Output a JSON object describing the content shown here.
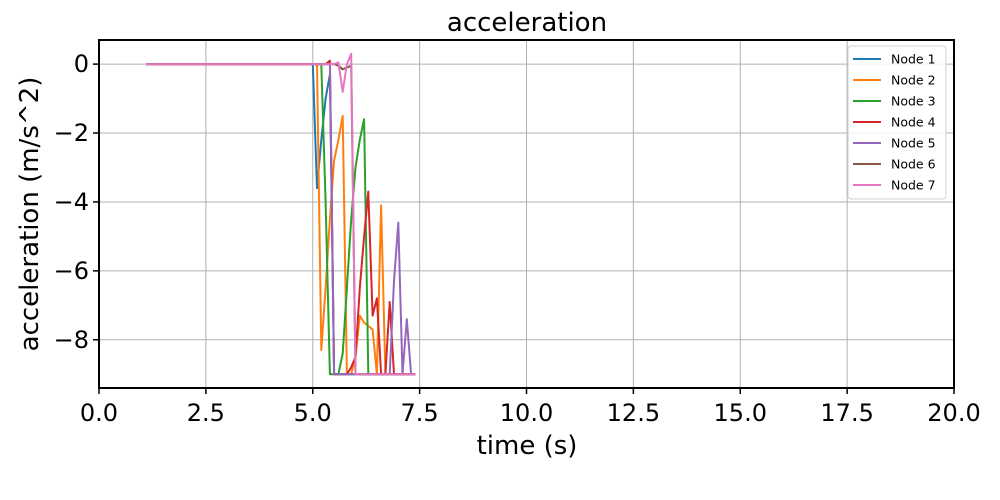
{
  "chart_data": {
    "type": "line",
    "title": "acceleration",
    "xlabel": "time (s)",
    "ylabel": "acceleration (m/s^2)",
    "xlim": [
      0,
      20
    ],
    "ylim": [
      -9.4,
      0.7
    ],
    "grid": true,
    "legend_position": "top-right",
    "x_ticks": [
      0,
      2.5,
      5,
      7.5,
      10,
      12.5,
      15,
      17.5,
      20
    ],
    "x_tick_labels": [
      "0.0",
      "2.5",
      "5.0",
      "7.5",
      "10.0",
      "12.5",
      "15.0",
      "17.5",
      "20.0"
    ],
    "y_ticks": [
      0,
      -2,
      -4,
      -6,
      -8
    ],
    "y_tick_labels": [
      "0",
      "−2",
      "−4",
      "−6",
      "−8"
    ],
    "series": [
      {
        "name": "Node 1",
        "color": "#1f77b4",
        "x": [
          1.1,
          5.0,
          5.1,
          5.2,
          5.3,
          5.4,
          5.5,
          5.6,
          5.7,
          7.4
        ],
        "y": [
          0,
          0,
          -3.6,
          -2.2,
          -1.0,
          -0.3,
          -9.0,
          -9.0,
          -9.0,
          -9.0
        ]
      },
      {
        "name": "Node 2",
        "color": "#ff7f0e",
        "x": [
          1.1,
          5.1,
          5.2,
          5.3,
          5.4,
          5.5,
          5.6,
          5.7,
          5.8,
          5.9,
          6.0,
          6.1,
          6.2,
          6.3,
          6.4,
          6.5,
          6.6,
          6.7,
          7.4
        ],
        "y": [
          0,
          0,
          -8.3,
          -6.5,
          -4.5,
          -2.8,
          -2.2,
          -1.5,
          -9.0,
          -9.0,
          -8.5,
          -7.3,
          -7.5,
          -7.6,
          -7.7,
          -9.0,
          -4.1,
          -9.0,
          -9.0
        ]
      },
      {
        "name": "Node 3",
        "color": "#2ca02c",
        "x": [
          1.1,
          5.2,
          5.3,
          5.4,
          5.5,
          5.6,
          5.7,
          5.8,
          5.9,
          6.0,
          6.1,
          6.2,
          6.3,
          7.4
        ],
        "y": [
          0,
          0,
          -4.0,
          -9.0,
          -9.0,
          -9.0,
          -8.4,
          -6.5,
          -4.5,
          -3.0,
          -2.2,
          -1.6,
          -9.0,
          -9.0
        ]
      },
      {
        "name": "Node 4",
        "color": "#d62728",
        "x": [
          1.1,
          5.3,
          5.4,
          5.5,
          5.6,
          5.7,
          5.8,
          5.9,
          6.0,
          6.1,
          6.2,
          6.3,
          6.4,
          6.5,
          6.6,
          6.7,
          6.8,
          6.9,
          7.4
        ],
        "y": [
          0,
          0,
          0.1,
          -9.0,
          -9.0,
          -9.0,
          -9.0,
          -8.8,
          -8.5,
          -6.5,
          -5.0,
          -3.7,
          -7.3,
          -6.8,
          -9.0,
          -9.0,
          -6.9,
          -9.0,
          -9.0
        ]
      },
      {
        "name": "Node 5",
        "color": "#9467bd",
        "x": [
          1.1,
          5.4,
          5.5,
          5.6,
          5.7,
          5.8,
          5.9,
          6.0,
          6.1,
          6.2,
          6.3,
          6.4,
          6.5,
          6.6,
          6.7,
          6.8,
          6.9,
          7.0,
          7.1,
          7.2,
          7.3,
          7.4
        ],
        "y": [
          0,
          0,
          -9.0,
          -9.0,
          -9.0,
          -9.0,
          -9.0,
          -9.0,
          -9.0,
          -9.0,
          -9.0,
          -9.0,
          -9.0,
          -9.0,
          -9.0,
          -9.0,
          -6.3,
          -4.6,
          -9.0,
          -7.4,
          -9.0,
          -9.0
        ]
      },
      {
        "name": "Node 6",
        "color": "#8c564b",
        "x": [
          1.1,
          5.5,
          5.6,
          5.7,
          5.8,
          5.9,
          6.0,
          6.1,
          6.2,
          6.3,
          6.4,
          6.5,
          7.4
        ],
        "y": [
          0,
          0,
          -0.05,
          -0.15,
          -0.1,
          -0.05,
          -9.0,
          -9.0,
          -9.0,
          -9.0,
          -9.0,
          -9.0,
          -9.0
        ]
      },
      {
        "name": "Node 7",
        "color": "#e377c2",
        "x": [
          1.1,
          5.5,
          5.6,
          5.7,
          5.8,
          5.9,
          6.0,
          6.1,
          6.2,
          6.3,
          6.4,
          6.5,
          7.4
        ],
        "y": [
          0,
          0,
          0.05,
          -0.8,
          0.0,
          0.3,
          -9.0,
          -9.0,
          -9.0,
          -9.0,
          -9.0,
          -9.0,
          -9.0
        ]
      }
    ]
  }
}
